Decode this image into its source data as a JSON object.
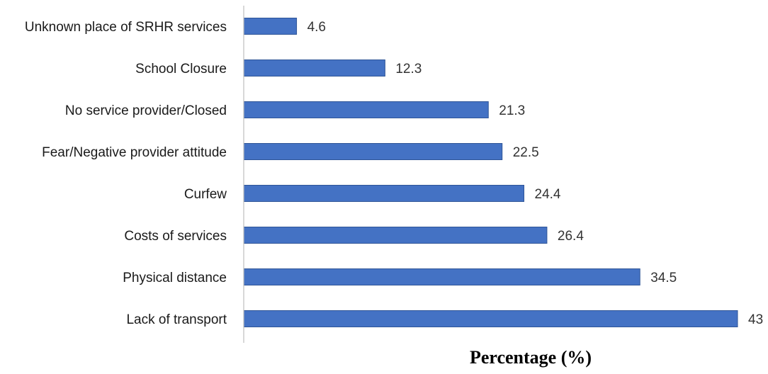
{
  "chart_data": {
    "type": "bar",
    "orientation": "horizontal",
    "categories": [
      "Unknown place of SRHR services",
      "School Closure",
      "No service provider/Closed",
      "Fear/Negative provider attitude",
      "Curfew",
      "Costs of services",
      "Physical distance",
      "Lack of transport"
    ],
    "values": [
      4.6,
      12.3,
      21.3,
      22.5,
      24.4,
      26.4,
      34.5,
      43
    ],
    "value_labels": [
      "4.6",
      "12.3",
      "21.3",
      "22.5",
      "24.4",
      "26.4",
      "34.5",
      "43"
    ],
    "xlabel": "Percentage (%)",
    "ylabel": "",
    "title": "",
    "xlim": [
      0,
      43
    ],
    "grid": false,
    "legend": "none",
    "bar_color": "#4472C4",
    "bar_edge_color": "#2F5597",
    "axis_color": "#BFBFBF"
  }
}
